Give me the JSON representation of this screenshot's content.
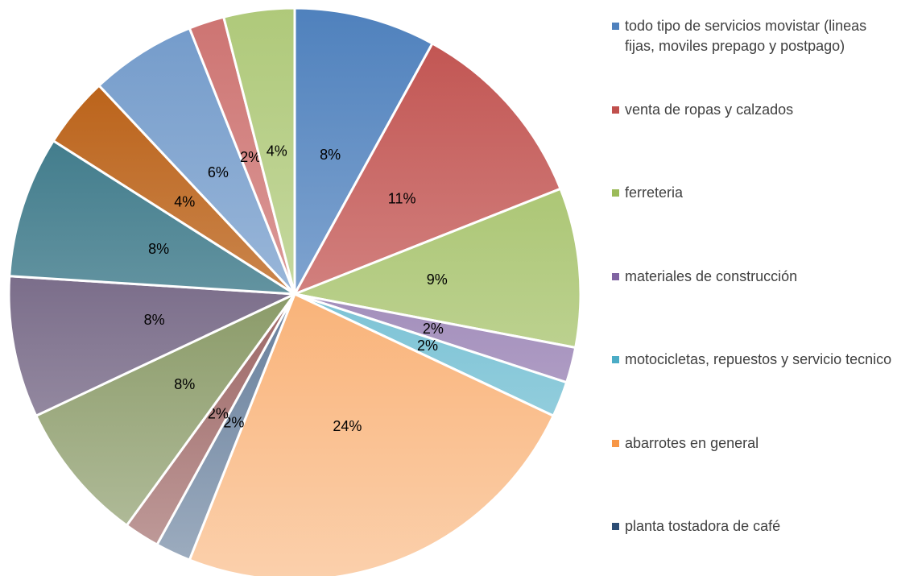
{
  "chart_data": {
    "type": "pie",
    "categories": [
      "todo tipo de servicios movistar (lineas fijas, moviles prepago y postpago)",
      "venta de ropas y calzados",
      "ferreteria",
      "materiales de construcción",
      "motocicletas, repuestos y servicio tecnico",
      "abarrotes en general",
      "planta tostadora de café",
      null,
      null,
      null,
      null,
      null,
      null,
      null,
      null
    ],
    "values": [
      8,
      11,
      9,
      2,
      2,
      24,
      2,
      2,
      8,
      8,
      8,
      4,
      6,
      2,
      4
    ],
    "value_labels": [
      "8%",
      "11%",
      "9%",
      "2%",
      "2%",
      "24%",
      "2%",
      "2%",
      "8%",
      "8%",
      "8%",
      "4%",
      "6%",
      "2%",
      "4%"
    ],
    "colors": [
      "#4f81bd",
      "#c0504d",
      "#9bbb59",
      "#8064a2",
      "#4bacc6",
      "#f79646",
      "#2c4d75",
      "#772c2a",
      "#5f7530",
      "#4d3b62",
      "#276a7c",
      "#b65708",
      "#729aca",
      "#cd7371",
      "#afc97a"
    ],
    "legend": "right"
  }
}
